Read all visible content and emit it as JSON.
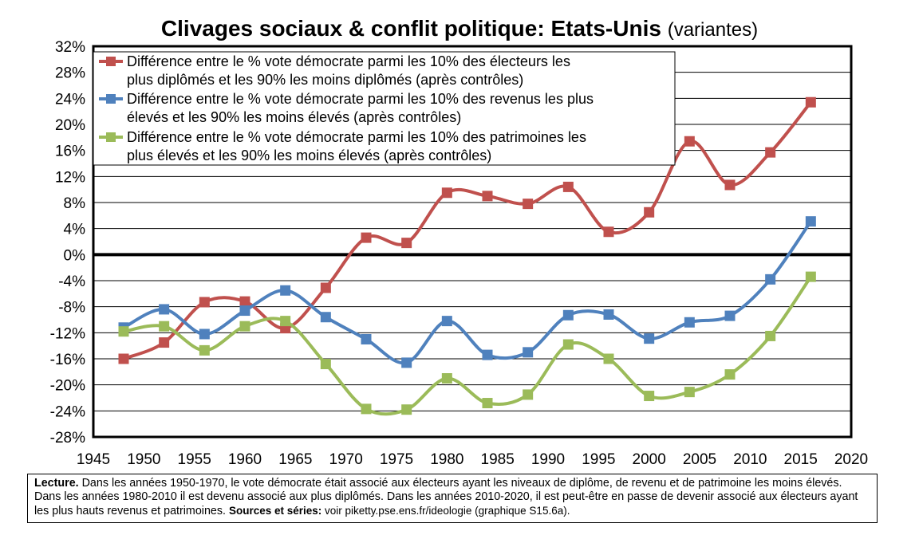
{
  "title": "Clivages sociaux & conflit politique: Etats-Unis",
  "subtitle": "(variantes)",
  "colors": {
    "diplome": "#c0504d",
    "revenu": "#4f81bd",
    "patrimoine": "#9bbb59"
  },
  "chart_data": {
    "type": "line",
    "title": "Clivages sociaux & conflit politique: Etats-Unis (variantes)",
    "xlim": [
      1945,
      2020
    ],
    "ylim": [
      -28,
      32
    ],
    "x_ticks": [
      "1945",
      "1950",
      "1955",
      "1960",
      "1965",
      "1970",
      "1975",
      "1980",
      "1985",
      "1990",
      "1995",
      "2000",
      "2005",
      "2010",
      "2015",
      "2020"
    ],
    "y_ticks": [
      "32%",
      "28%",
      "24%",
      "20%",
      "16%",
      "12%",
      "8%",
      "4%",
      "0%",
      "-4%",
      "-8%",
      "-12%",
      "-16%",
      "-20%",
      "-24%",
      "-28%"
    ],
    "grid": true,
    "legend_position": "top-left",
    "x": [
      1948,
      1952,
      1956,
      1960,
      1964,
      1968,
      1972,
      1976,
      1980,
      1984,
      1988,
      1992,
      1996,
      2000,
      2004,
      2008,
      2012,
      2016
    ],
    "series": [
      {
        "name": "Différence entre le % vote démocrate parmi les 10% des électeurs les plus diplômés et les 90% les moins diplômés (après contrôles)",
        "legend_lines": [
          "Différence entre le % vote démocrate parmi les 10% des électeurs les",
          "plus diplômés et les 90% les moins diplômés (après contrôles)"
        ],
        "color": "#c0504d",
        "values": [
          -16,
          -13.5,
          -7.3,
          -7.2,
          -11.3,
          -5.1,
          2.6,
          1.8,
          9.5,
          9.0,
          7.8,
          10.4,
          3.5,
          6.5,
          17.4,
          10.7,
          15.7,
          23.4
        ]
      },
      {
        "name": "Différence entre le % vote démocrate parmi les 10% des revenus les plus élevés et les 90% les moins élevés (après contrôles)",
        "legend_lines": [
          "Différence entre le % vote démocrate parmi les 10% des revenus les plus",
          "élevés et les 90% les moins élevés (après contrôles)"
        ],
        "color": "#4f81bd",
        "values": [
          -11.2,
          -8.4,
          -12.2,
          -8.6,
          -5.5,
          -9.6,
          -13.0,
          -16.6,
          -10.2,
          -15.4,
          -15.0,
          -9.3,
          -9.2,
          -12.9,
          -10.4,
          -9.4,
          -3.8,
          5.1
        ]
      },
      {
        "name": "Différence entre le % vote démocrate parmi les 10% des patrimoines les plus élevés et les 90% les moins élevés (après contrôles)",
        "legend_lines": [
          "Différence entre le % vote démocrate parmi les 10% des patrimoines les",
          "plus élevés et les 90% les moins élevés (après contrôles)"
        ],
        "color": "#9bbb59",
        "values": [
          -11.8,
          -11.0,
          -14.7,
          -11.0,
          -10.2,
          -16.8,
          -23.7,
          -23.8,
          -19.0,
          -22.8,
          -21.5,
          -13.8,
          -16.0,
          -21.7,
          -21.1,
          -18.4,
          -12.5,
          -3.4
        ]
      }
    ]
  },
  "note": {
    "lead": "Lecture.",
    "text": " Dans les années 1950-1970, le vote démocrate était associé aux électeurs ayant les niveaux de diplôme, de revenu et de patrimoine les moins élevés. Dans les années 1980-2010 il est devenu associé aux plus diplômés. Dans les années 2010-2020, il est peut-être en passe de devenir associé aux électeurs ayant les plus hauts revenus et patrimoines. ",
    "sources_label": "Sources et séries:",
    "sources_text": " voir piketty.pse.ens.fr/ideologie (graphique S15.6a)."
  }
}
